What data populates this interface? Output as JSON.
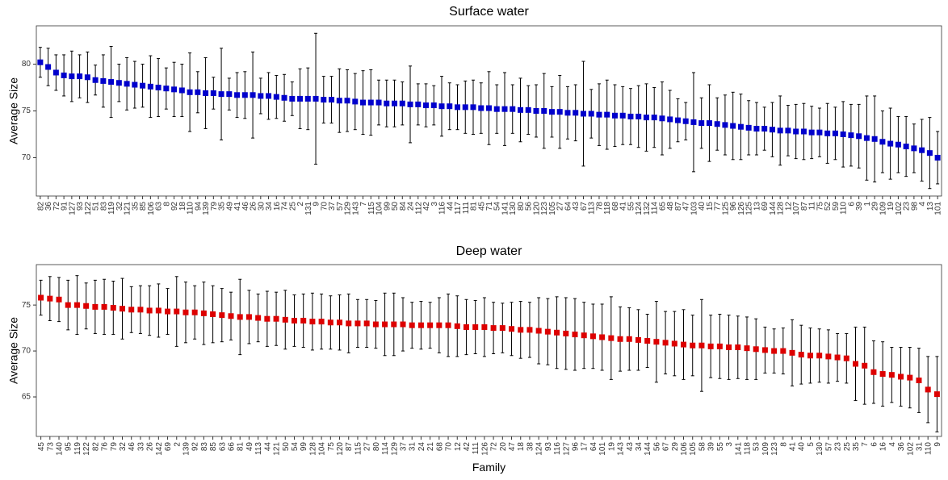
{
  "chart_data": [
    {
      "type": "errorbar",
      "title": "Surface water",
      "y_label": "Average Size",
      "color": "#0000cc",
      "error_color": "#000000",
      "ylim": [
        65.9,
        84.1
      ],
      "yticks": [
        70,
        75,
        80
      ],
      "categories": [
        "82",
        "36",
        "72",
        "91",
        "127",
        "93",
        "122",
        "51",
        "83",
        "119",
        "32",
        "121",
        "35",
        "85",
        "106",
        "63",
        "8",
        "92",
        "18",
        "110",
        "94",
        "139",
        "79",
        "35",
        "49",
        "41",
        "46",
        "26",
        "30",
        "34",
        "16",
        "74",
        "25",
        "2",
        "131",
        "9",
        "70",
        "37",
        "57",
        "129",
        "143",
        "7",
        "115",
        "104",
        "99",
        "50",
        "84",
        "24",
        "112",
        "42",
        "3",
        "116",
        "44",
        "117",
        "111",
        "81",
        "45",
        "71",
        "54",
        "141",
        "130",
        "80",
        "56",
        "120",
        "123",
        "105",
        "27",
        "64",
        "43",
        "67",
        "113",
        "78",
        "118",
        "68",
        "41",
        "55",
        "124",
        "132",
        "114",
        "65",
        "48",
        "87",
        "47",
        "103",
        "40",
        "15",
        "77",
        "125",
        "96",
        "126",
        "125",
        "13",
        "69",
        "144",
        "128",
        "12",
        "107",
        "87",
        "11",
        "75",
        "52",
        "59",
        "110",
        "6",
        "39",
        "1",
        "29",
        "109",
        "19",
        "102",
        "23",
        "98",
        "4",
        "13",
        "101"
      ],
      "values": [
        80.2,
        79.7,
        79.1,
        78.8,
        78.7,
        78.7,
        78.6,
        78.3,
        78.2,
        78.1,
        78.0,
        77.9,
        77.8,
        77.7,
        77.6,
        77.5,
        77.4,
        77.3,
        77.2,
        77.0,
        77.0,
        76.9,
        76.9,
        76.8,
        76.8,
        76.7,
        76.7,
        76.7,
        76.6,
        76.6,
        76.5,
        76.4,
        76.3,
        76.3,
        76.3,
        76.3,
        76.2,
        76.2,
        76.1,
        76.1,
        76.0,
        75.9,
        75.9,
        75.9,
        75.8,
        75.8,
        75.8,
        75.7,
        75.7,
        75.6,
        75.6,
        75.5,
        75.5,
        75.4,
        75.4,
        75.4,
        75.3,
        75.3,
        75.2,
        75.2,
        75.2,
        75.1,
        75.1,
        75.0,
        75.0,
        74.9,
        74.9,
        74.8,
        74.8,
        74.7,
        74.7,
        74.6,
        74.6,
        74.5,
        74.5,
        74.4,
        74.4,
        74.3,
        74.3,
        74.2,
        74.1,
        74.0,
        73.9,
        73.8,
        73.7,
        73.7,
        73.6,
        73.5,
        73.4,
        73.3,
        73.2,
        73.1,
        73.1,
        73.0,
        72.9,
        72.9,
        72.8,
        72.8,
        72.7,
        72.7,
        72.6,
        72.6,
        72.5,
        72.4,
        72.3,
        72.1,
        72.0,
        71.7,
        71.5,
        71.4,
        71.2,
        71.0,
        70.8,
        70.5,
        70.0
      ],
      "errors": [
        1.6,
        2.0,
        1.9,
        2.2,
        2.7,
        2.3,
        2.7,
        1.6,
        2.8,
        3.8,
        2.0,
        2.8,
        2.5,
        2.3,
        3.3,
        3.1,
        2.2,
        2.9,
        2.8,
        4.2,
        2.2,
        3.8,
        1.7,
        4.9,
        1.7,
        2.4,
        2.5,
        4.6,
        1.9,
        2.5,
        2.3,
        2.5,
        1.8,
        3.2,
        3.3,
        7.0,
        2.5,
        2.5,
        3.4,
        3.3,
        3.0,
        3.4,
        3.5,
        2.4,
        2.5,
        2.5,
        2.3,
        4.1,
        2.2,
        2.3,
        2.1,
        3.2,
        2.5,
        2.4,
        2.8,
        2.9,
        2.7,
        3.9,
        2.6,
        3.9,
        2.6,
        3.4,
        2.6,
        2.8,
        4.0,
        2.7,
        3.9,
        2.8,
        3.0,
        5.6,
        2.6,
        3.3,
        3.7,
        3.3,
        3.1,
        3.0,
        3.3,
        3.6,
        3.2,
        3.9,
        3.1,
        2.3,
        2.0,
        5.3,
        2.7,
        4.1,
        2.8,
        3.2,
        3.6,
        3.5,
        2.9,
        2.8,
        2.3,
        2.9,
        3.7,
        2.7,
        2.9,
        3.0,
        2.8,
        2.6,
        3.2,
        2.8,
        3.5,
        3.3,
        3.4,
        4.5,
        4.6,
        3.3,
        3.8,
        3.0,
        3.2,
        2.6,
        3.3,
        3.8,
        2.8
      ]
    },
    {
      "type": "errorbar",
      "title": "Deep water",
      "y_label": "Average Size",
      "x_label": "Family",
      "color": "#dd0000",
      "error_color": "#000000",
      "ylim": [
        60.7,
        79.4
      ],
      "yticks": [
        65,
        70,
        75
      ],
      "categories": [
        "45",
        "73",
        "140",
        "95",
        "119",
        "122",
        "82",
        "76",
        "79",
        "32",
        "46",
        "33",
        "26",
        "142",
        "69",
        "2",
        "139",
        "92",
        "83",
        "85",
        "63",
        "66",
        "81",
        "49",
        "113",
        "44",
        "121",
        "50",
        "54",
        "99",
        "128",
        "104",
        "75",
        "120",
        "87",
        "115",
        "27",
        "80",
        "114",
        "129",
        "37",
        "31",
        "24",
        "21",
        "68",
        "70",
        "12",
        "42",
        "111",
        "126",
        "72",
        "20",
        "47",
        "18",
        "38",
        "124",
        "93",
        "116",
        "127",
        "96",
        "17",
        "64",
        "101",
        "19",
        "143",
        "43",
        "34",
        "144",
        "56",
        "67",
        "29",
        "106",
        "105",
        "58",
        "39",
        "55",
        "3",
        "141",
        "118",
        "53",
        "109",
        "123",
        "8",
        "41",
        "40",
        "5",
        "130",
        "57",
        "23",
        "25",
        "35",
        "7",
        "6",
        "16",
        "4",
        "36",
        "102",
        "31",
        "110",
        "9"
      ],
      "values": [
        75.8,
        75.7,
        75.6,
        75.0,
        75.0,
        74.9,
        74.8,
        74.8,
        74.7,
        74.6,
        74.5,
        74.5,
        74.4,
        74.4,
        74.3,
        74.3,
        74.2,
        74.2,
        74.1,
        74.0,
        73.9,
        73.8,
        73.7,
        73.7,
        73.6,
        73.5,
        73.5,
        73.4,
        73.3,
        73.3,
        73.2,
        73.2,
        73.1,
        73.1,
        73.0,
        73.0,
        73.0,
        72.9,
        72.9,
        72.9,
        72.9,
        72.8,
        72.8,
        72.8,
        72.8,
        72.8,
        72.7,
        72.6,
        72.6,
        72.6,
        72.5,
        72.5,
        72.4,
        72.3,
        72.3,
        72.2,
        72.1,
        72.0,
        71.9,
        71.8,
        71.7,
        71.6,
        71.5,
        71.4,
        71.3,
        71.3,
        71.2,
        71.1,
        71.0,
        70.9,
        70.8,
        70.7,
        70.6,
        70.6,
        70.5,
        70.5,
        70.4,
        70.4,
        70.3,
        70.2,
        70.1,
        70.0,
        70.0,
        69.8,
        69.6,
        69.5,
        69.5,
        69.4,
        69.3,
        69.2,
        68.6,
        68.4,
        67.7,
        67.5,
        67.4,
        67.2,
        67.1,
        66.8,
        65.8,
        65.3
      ],
      "errors": [
        1.9,
        2.4,
        2.4,
        2.7,
        3.2,
        2.5,
        2.9,
        3.0,
        2.9,
        3.3,
        2.5,
        2.6,
        2.7,
        2.9,
        2.5,
        3.8,
        3.3,
        2.9,
        3.4,
        3.1,
        2.9,
        2.6,
        4.1,
        2.9,
        2.6,
        3.0,
        2.9,
        3.2,
        2.8,
        2.9,
        3.1,
        3.0,
        2.9,
        3.0,
        3.2,
        2.6,
        2.6,
        2.6,
        3.4,
        3.4,
        2.9,
        2.5,
        2.6,
        2.5,
        3.0,
        3.4,
        3.3,
        3.0,
        2.9,
        3.2,
        2.8,
        2.7,
        2.9,
        3.1,
        3.0,
        3.6,
        3.6,
        3.9,
        3.9,
        3.9,
        3.6,
        3.5,
        3.6,
        4.5,
        3.5,
        3.4,
        3.3,
        2.9,
        4.4,
        3.4,
        3.5,
        3.8,
        3.3,
        5.0,
        3.4,
        3.5,
        3.5,
        3.4,
        3.4,
        3.3,
        2.5,
        2.4,
        2.5,
        3.6,
        3.2,
        3.0,
        2.9,
        2.9,
        2.6,
        2.7,
        4.0,
        4.2,
        3.4,
        3.5,
        3.0,
        3.2,
        3.3,
        3.5,
        3.6,
        4.1
      ]
    }
  ]
}
